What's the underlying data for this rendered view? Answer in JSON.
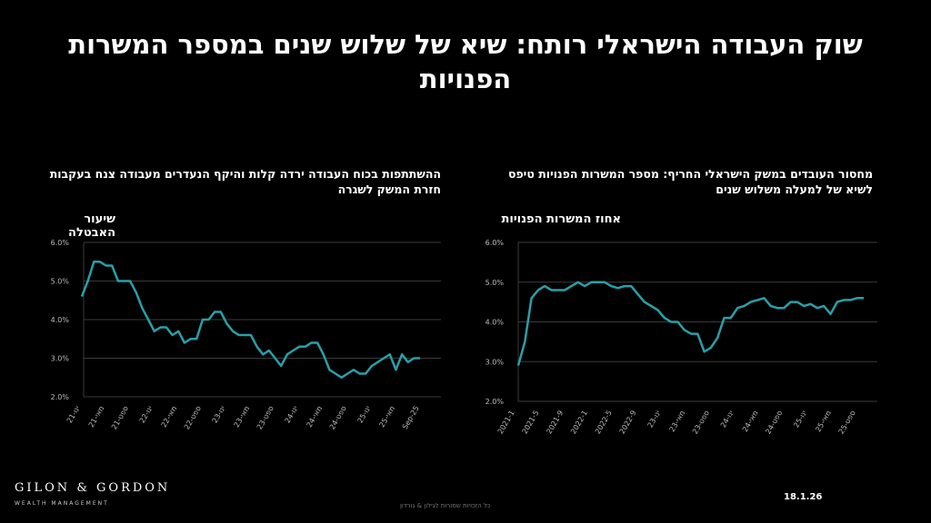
{
  "title": "שוק העבודה הישראלי רותח: שיא של שלוש שנים במספר המשרות הפנויות",
  "left": {
    "subtitle": "ההשתתפות בכוח העבודה ירדה קלות והיקף הנעדרים מעבודה צנח בעקבות חזרת המשק לשגרה",
    "ylabel": "שיעור האבטלה"
  },
  "right": {
    "subtitle": "מחסור העובדים במשק הישראלי החריף: מספר המשרות הפנויות טיפס לשיא של למעלה משלוש שנים",
    "ylabel": "אחוז המשרות הפנויות"
  },
  "logo": {
    "name": "GILON & GORDON",
    "tagline": "WEALTH MANAGEMENT"
  },
  "date": "18.1.26",
  "copyright": "כל הזכויות שמורות לגילון & גורדון",
  "accent": "#2a9fa8",
  "chart_data": [
    {
      "type": "line",
      "ylabel": "שיעור האבטלה",
      "ylim": [
        2.0,
        6.0
      ],
      "yticks": [
        "2.0%",
        "3.0%",
        "4.0%",
        "5.0%",
        "6.0%"
      ],
      "grid": true,
      "xticks": [
        "ינו-21",
        "מאי-21",
        "ספט-21",
        "ינו-22",
        "מאי-22",
        "ספט-22",
        "ינו-23",
        "מאי-23",
        "ספט-23",
        "ינו-24",
        "מאי-24",
        "ספט-24",
        "ינו-25",
        "מאי-25",
        "Sep-25"
      ],
      "values": [
        4.6,
        5.0,
        5.5,
        5.5,
        5.4,
        5.4,
        5.0,
        5.0,
        5.0,
        4.7,
        4.3,
        4.0,
        3.7,
        3.8,
        3.8,
        3.6,
        3.7,
        3.4,
        3.5,
        3.5,
        4.0,
        4.0,
        4.2,
        4.2,
        3.9,
        3.7,
        3.6,
        3.6,
        3.6,
        3.3,
        3.1,
        3.2,
        3.0,
        2.8,
        3.1,
        3.2,
        3.3,
        3.3,
        3.4,
        3.4,
        3.1,
        2.7,
        2.6,
        2.5,
        2.6,
        2.7,
        2.6,
        2.6,
        2.8,
        2.9,
        3.0,
        3.1,
        2.7,
        3.1,
        2.9,
        3.0,
        3.0
      ]
    },
    {
      "type": "line",
      "ylabel": "אחוז המשרות הפנויות",
      "ylim": [
        2.0,
        6.0
      ],
      "yticks": [
        "2.0%",
        "3.0%",
        "4.0%",
        "5.0%",
        "6.0%"
      ],
      "grid": true,
      "xticks": [
        "2021-1",
        "2021-5",
        "2021-9",
        "2022-1",
        "2022-5",
        "2022-9",
        "ינו-23",
        "מאי-23",
        "ספט-23",
        "ינו-24",
        "מאי-24",
        "ספט-24",
        "ינו-25",
        "מאי-25",
        "ספט-25"
      ],
      "values": [
        2.9,
        3.5,
        4.6,
        4.8,
        4.9,
        4.8,
        4.8,
        4.8,
        4.9,
        5.0,
        4.9,
        5.0,
        5.0,
        5.0,
        4.9,
        4.85,
        4.9,
        4.9,
        4.7,
        4.5,
        4.4,
        4.3,
        4.1,
        4.0,
        4.0,
        3.8,
        3.7,
        3.7,
        3.25,
        3.35,
        3.6,
        4.1,
        4.1,
        4.35,
        4.4,
        4.5,
        4.55,
        4.6,
        4.4,
        4.35,
        4.35,
        4.5,
        4.5,
        4.4,
        4.45,
        4.35,
        4.4,
        4.2,
        4.5,
        4.55,
        4.55,
        4.6,
        4.6
      ]
    }
  ]
}
